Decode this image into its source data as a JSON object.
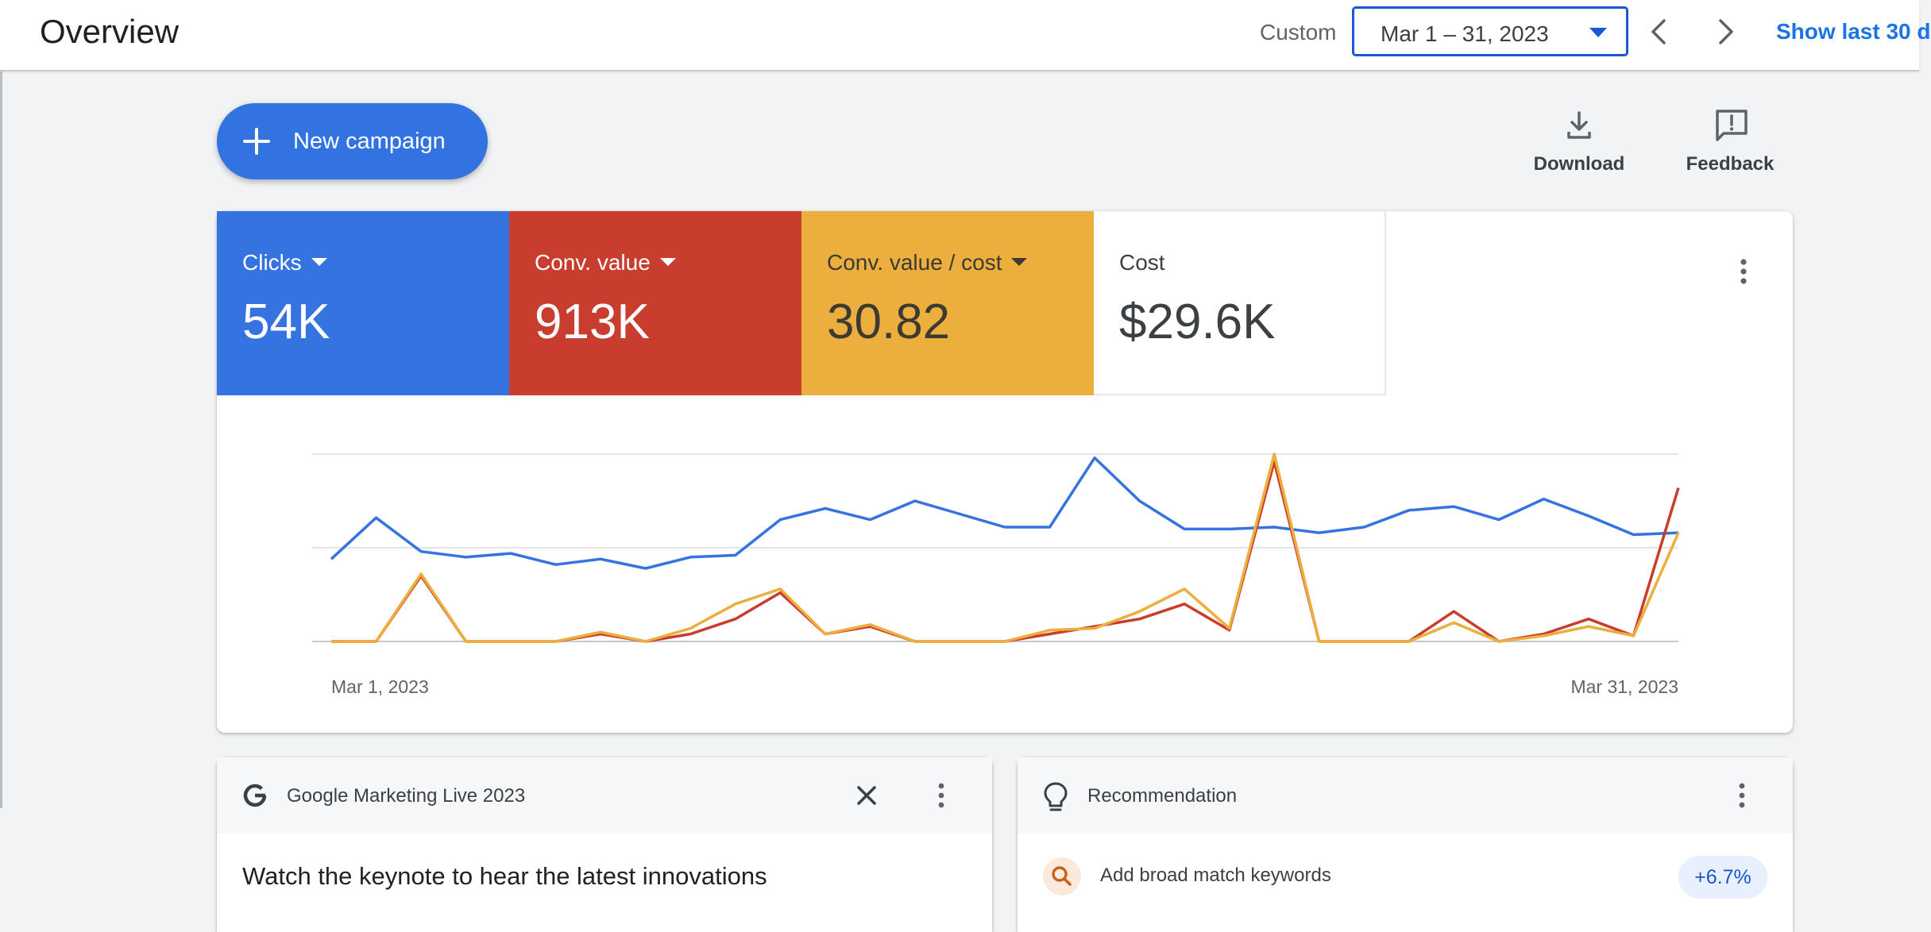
{
  "header": {
    "title": "Overview",
    "range_type": "Custom",
    "date_range": "Mar 1 – 31, 2023",
    "show_last": "Show last 30 d"
  },
  "actions": {
    "new_campaign": "New campaign",
    "download": "Download",
    "feedback": "Feedback"
  },
  "metrics": [
    {
      "label": "Clicks",
      "value": "54K",
      "dropdown": true,
      "color": "#3574e0"
    },
    {
      "label": "Conv. value",
      "value": "913K",
      "dropdown": true,
      "color": "#c93d2f"
    },
    {
      "label": "Conv. value / cost",
      "value": "30.82",
      "dropdown": true,
      "color": "#ecae3c"
    },
    {
      "label": "Cost",
      "value": "$29.6K",
      "dropdown": false,
      "color": "#ffffff"
    }
  ],
  "chart_data": {
    "type": "line",
    "x_start_label": "Mar 1, 2023",
    "x_end_label": "Mar 31, 2023",
    "y_scale": "relative (0 = baseline, 1 = top gridline)",
    "gridlines": 3,
    "series": [
      {
        "name": "Clicks",
        "color": "#3574e0",
        "values": [
          0.44,
          0.66,
          0.48,
          0.45,
          0.47,
          0.41,
          0.44,
          0.39,
          0.45,
          0.46,
          0.65,
          0.71,
          0.65,
          0.75,
          0.68,
          0.61,
          0.61,
          0.98,
          0.75,
          0.6,
          0.6,
          0.61,
          0.58,
          0.61,
          0.7,
          0.72,
          0.65,
          0.76,
          0.67,
          0.57,
          0.58
        ]
      },
      {
        "name": "Conv. value",
        "color": "#c93d2f",
        "values": [
          0,
          0,
          0.35,
          0,
          0,
          0,
          0.04,
          0,
          0.04,
          0.12,
          0.26,
          0.04,
          0.08,
          0,
          0,
          0,
          0.04,
          0.08,
          0.12,
          0.2,
          0.06,
          0.96,
          0,
          0,
          0,
          0.16,
          0,
          0.04,
          0.12,
          0.03,
          0.82
        ]
      },
      {
        "name": "Conv. value / cost",
        "color": "#ecae3c",
        "values": [
          0,
          0,
          0.36,
          0,
          0,
          0,
          0.05,
          0,
          0.07,
          0.2,
          0.28,
          0.04,
          0.09,
          0,
          0,
          0,
          0.06,
          0.07,
          0.16,
          0.28,
          0.07,
          1.0,
          0,
          0,
          0,
          0.1,
          0,
          0.03,
          0.08,
          0.03,
          0.58
        ]
      }
    ]
  },
  "promo_card": {
    "title": "Google Marketing Live 2023",
    "headline": "Watch the keynote to hear the latest innovations"
  },
  "recommendation_card": {
    "title": "Recommendation",
    "item_text": "Add broad match keywords",
    "lift": "+6.7%"
  },
  "icons": {
    "dropdown": "arrow-drop-down-icon",
    "prev": "chevron-left-icon",
    "next": "chevron-right-icon",
    "download": "download-icon",
    "feedback": "feedback-icon",
    "menu": "more-vert-icon",
    "close": "close-icon",
    "google": "google-g-icon",
    "recommendation": "lightbulb-icon",
    "search": "search-icon"
  }
}
